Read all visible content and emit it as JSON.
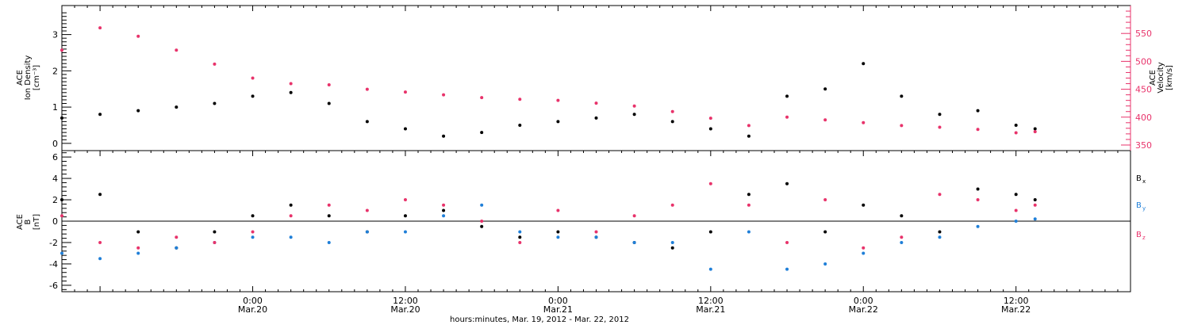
{
  "chart_data": [
    {
      "type": "scatter",
      "panel": "top",
      "title": "",
      "x_axis_type": "time",
      "xlim": [
        "2012-03-19 09:00",
        "2012-03-22 21:00"
      ],
      "ylabel_left": [
        "ACE",
        "Ion Density",
        "[cm⁻³]"
      ],
      "ylabel_right": [
        "ACE",
        "Velocity",
        "[km/s]"
      ],
      "left_ylim": [
        -0.2,
        3.8
      ],
      "right_ylim": [
        340,
        600
      ],
      "left_ticks": [
        0,
        1,
        2,
        3
      ],
      "right_ticks": [
        350,
        400,
        450,
        500,
        550
      ],
      "colors": {
        "density": "#000000",
        "velocity": "#e8336b"
      },
      "series": [
        {
          "axis": "left",
          "color": "#000000",
          "x": [
            "2012-03-19 09:00",
            "2012-03-19 12:00",
            "2012-03-19 15:00",
            "2012-03-19 18:00",
            "2012-03-19 21:00",
            "2012-03-20 00:00",
            "2012-03-20 03:00",
            "2012-03-20 06:00",
            "2012-03-20 09:00",
            "2012-03-20 12:00",
            "2012-03-20 15:00",
            "2012-03-20 18:00",
            "2012-03-20 21:00",
            "2012-03-21 00:00",
            "2012-03-21 03:00",
            "2012-03-21 06:00",
            "2012-03-21 09:00",
            "2012-03-21 12:00",
            "2012-03-21 15:00",
            "2012-03-21 18:00",
            "2012-03-21 21:00",
            "2012-03-22 00:00",
            "2012-03-22 03:00",
            "2012-03-22 06:00",
            "2012-03-22 09:00",
            "2012-03-22 12:00",
            "2012-03-22 13:30"
          ],
          "y": [
            0.7,
            0.8,
            0.9,
            1.0,
            1.1,
            1.3,
            1.4,
            1.1,
            0.6,
            0.4,
            0.2,
            0.3,
            0.5,
            0.6,
            0.7,
            0.8,
            0.6,
            0.4,
            0.2,
            1.3,
            1.5,
            2.2,
            1.3,
            0.8,
            0.9,
            0.5,
            0.4
          ]
        },
        {
          "axis": "right",
          "color": "#e8336b",
          "x": [
            "2012-03-19 09:00",
            "2012-03-19 12:00",
            "2012-03-19 15:00",
            "2012-03-19 18:00",
            "2012-03-19 21:00",
            "2012-03-20 00:00",
            "2012-03-20 03:00",
            "2012-03-20 06:00",
            "2012-03-20 09:00",
            "2012-03-20 12:00",
            "2012-03-20 15:00",
            "2012-03-20 18:00",
            "2012-03-20 21:00",
            "2012-03-21 00:00",
            "2012-03-21 03:00",
            "2012-03-21 06:00",
            "2012-03-21 09:00",
            "2012-03-21 12:00",
            "2012-03-21 15:00",
            "2012-03-21 18:00",
            "2012-03-21 21:00",
            "2012-03-22 00:00",
            "2012-03-22 03:00",
            "2012-03-22 06:00",
            "2012-03-22 09:00",
            "2012-03-22 12:00",
            "2012-03-22 13:30"
          ],
          "y": [
            520,
            560,
            545,
            520,
            495,
            470,
            460,
            458,
            450,
            445,
            440,
            435,
            432,
            430,
            425,
            420,
            410,
            398,
            385,
            400,
            395,
            390,
            385,
            382,
            378,
            372,
            374
          ]
        }
      ]
    },
    {
      "type": "scatter",
      "panel": "bottom",
      "title": "",
      "x_axis_type": "time",
      "xlim": [
        "2012-03-19 09:00",
        "2012-03-22 21:00"
      ],
      "ylabel": [
        "ACE",
        "B",
        "[nT]"
      ],
      "ylim": [
        -6.6,
        6.6
      ],
      "yticks": [
        -6,
        -4,
        -2,
        0,
        2,
        4,
        6
      ],
      "reference_line": 0,
      "legend": [
        {
          "label": "B",
          "sub": "x",
          "color": "#000000"
        },
        {
          "label": "B",
          "sub": "y",
          "color": "#1f7fd8"
        },
        {
          "label": "B",
          "sub": "z",
          "color": "#e8336b"
        }
      ],
      "x_tick_labels": [
        {
          "x": "2012-03-20 00:00",
          "top": "0:00",
          "bottom": "Mar.20"
        },
        {
          "x": "2012-03-20 12:00",
          "top": "12:00",
          "bottom": "Mar.20"
        },
        {
          "x": "2012-03-21 00:00",
          "top": "0:00",
          "bottom": "Mar.21"
        },
        {
          "x": "2012-03-21 12:00",
          "top": "12:00",
          "bottom": "Mar.21"
        },
        {
          "x": "2012-03-22 00:00",
          "top": "0:00",
          "bottom": "Mar.22"
        },
        {
          "x": "2012-03-22 12:00",
          "top": "12:00",
          "bottom": "Mar.22"
        }
      ],
      "xlabel": "hours:minutes, Mar. 19, 2012 - Mar. 22, 2012",
      "series": [
        {
          "name": "Bx",
          "color": "#000000",
          "x": [
            "2012-03-19 09:00",
            "2012-03-19 12:00",
            "2012-03-19 15:00",
            "2012-03-19 18:00",
            "2012-03-19 21:00",
            "2012-03-20 00:00",
            "2012-03-20 03:00",
            "2012-03-20 06:00",
            "2012-03-20 09:00",
            "2012-03-20 12:00",
            "2012-03-20 15:00",
            "2012-03-20 18:00",
            "2012-03-20 21:00",
            "2012-03-21 00:00",
            "2012-03-21 03:00",
            "2012-03-21 06:00",
            "2012-03-21 09:00",
            "2012-03-21 12:00",
            "2012-03-21 15:00",
            "2012-03-21 18:00",
            "2012-03-21 21:00",
            "2012-03-22 00:00",
            "2012-03-22 03:00",
            "2012-03-22 06:00",
            "2012-03-22 09:00",
            "2012-03-22 12:00",
            "2012-03-22 13:30"
          ],
          "y": [
            2.0,
            2.5,
            -1.0,
            -2.5,
            -1.0,
            0.5,
            1.5,
            0.5,
            -1.0,
            0.5,
            1.0,
            -0.5,
            -1.5,
            -1.0,
            -1.5,
            -2.0,
            -2.5,
            -1.0,
            2.5,
            3.5,
            -1.0,
            1.5,
            0.5,
            -1.0,
            3.0,
            2.5,
            2.0
          ]
        },
        {
          "name": "By",
          "color": "#1f7fd8",
          "x": [
            "2012-03-19 09:00",
            "2012-03-19 12:00",
            "2012-03-19 15:00",
            "2012-03-19 18:00",
            "2012-03-19 21:00",
            "2012-03-20 00:00",
            "2012-03-20 03:00",
            "2012-03-20 06:00",
            "2012-03-20 09:00",
            "2012-03-20 12:00",
            "2012-03-20 15:00",
            "2012-03-20 18:00",
            "2012-03-20 21:00",
            "2012-03-21 00:00",
            "2012-03-21 03:00",
            "2012-03-21 06:00",
            "2012-03-21 09:00",
            "2012-03-21 12:00",
            "2012-03-21 15:00",
            "2012-03-21 18:00",
            "2012-03-21 21:00",
            "2012-03-22 00:00",
            "2012-03-22 03:00",
            "2012-03-22 06:00",
            "2012-03-22 09:00",
            "2012-03-22 12:00",
            "2012-03-22 13:30"
          ],
          "y": [
            -3.0,
            -3.5,
            -3.0,
            -2.5,
            -2.0,
            -1.5,
            -1.5,
            -2.0,
            -1.0,
            -1.0,
            0.5,
            1.5,
            -1.0,
            -1.5,
            -1.5,
            -2.0,
            -2.0,
            -4.5,
            -1.0,
            -4.5,
            -4.0,
            -3.0,
            -2.0,
            -1.5,
            -0.5,
            0.0,
            0.2
          ]
        },
        {
          "name": "Bz",
          "color": "#e8336b",
          "x": [
            "2012-03-19 09:00",
            "2012-03-19 12:00",
            "2012-03-19 15:00",
            "2012-03-19 18:00",
            "2012-03-19 21:00",
            "2012-03-20 00:00",
            "2012-03-20 03:00",
            "2012-03-20 06:00",
            "2012-03-20 09:00",
            "2012-03-20 12:00",
            "2012-03-20 15:00",
            "2012-03-20 18:00",
            "2012-03-20 21:00",
            "2012-03-21 00:00",
            "2012-03-21 03:00",
            "2012-03-21 06:00",
            "2012-03-21 09:00",
            "2012-03-21 12:00",
            "2012-03-21 15:00",
            "2012-03-21 18:00",
            "2012-03-21 21:00",
            "2012-03-22 00:00",
            "2012-03-22 03:00",
            "2012-03-22 06:00",
            "2012-03-22 09:00",
            "2012-03-22 12:00",
            "2012-03-22 13:30"
          ],
          "y": [
            0.5,
            -2.0,
            -2.5,
            -1.5,
            -2.0,
            -1.0,
            0.5,
            1.5,
            1.0,
            2.0,
            1.5,
            0.0,
            -2.0,
            1.0,
            -1.0,
            0.5,
            1.5,
            3.5,
            1.5,
            -2.0,
            2.0,
            -2.5,
            -1.5,
            2.5,
            2.0,
            1.0,
            1.5
          ]
        }
      ]
    }
  ]
}
